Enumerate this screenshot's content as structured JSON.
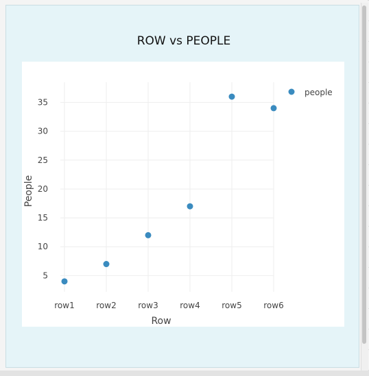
{
  "chart_data": {
    "type": "scatter",
    "title": "ROW vs PEOPLE",
    "xlabel": "Row",
    "ylabel": "People",
    "categories": [
      "row1",
      "row2",
      "row3",
      "row4",
      "row5",
      "row6"
    ],
    "series": [
      {
        "name": "people",
        "values": [
          4,
          7,
          12,
          17,
          36,
          34
        ],
        "color": "#3a8bbf"
      }
    ],
    "ylim": [
      2.2,
      38.5
    ],
    "yticks": [
      5,
      10,
      15,
      20,
      25,
      30,
      35
    ],
    "grid": true,
    "legend_position": "top-right"
  }
}
